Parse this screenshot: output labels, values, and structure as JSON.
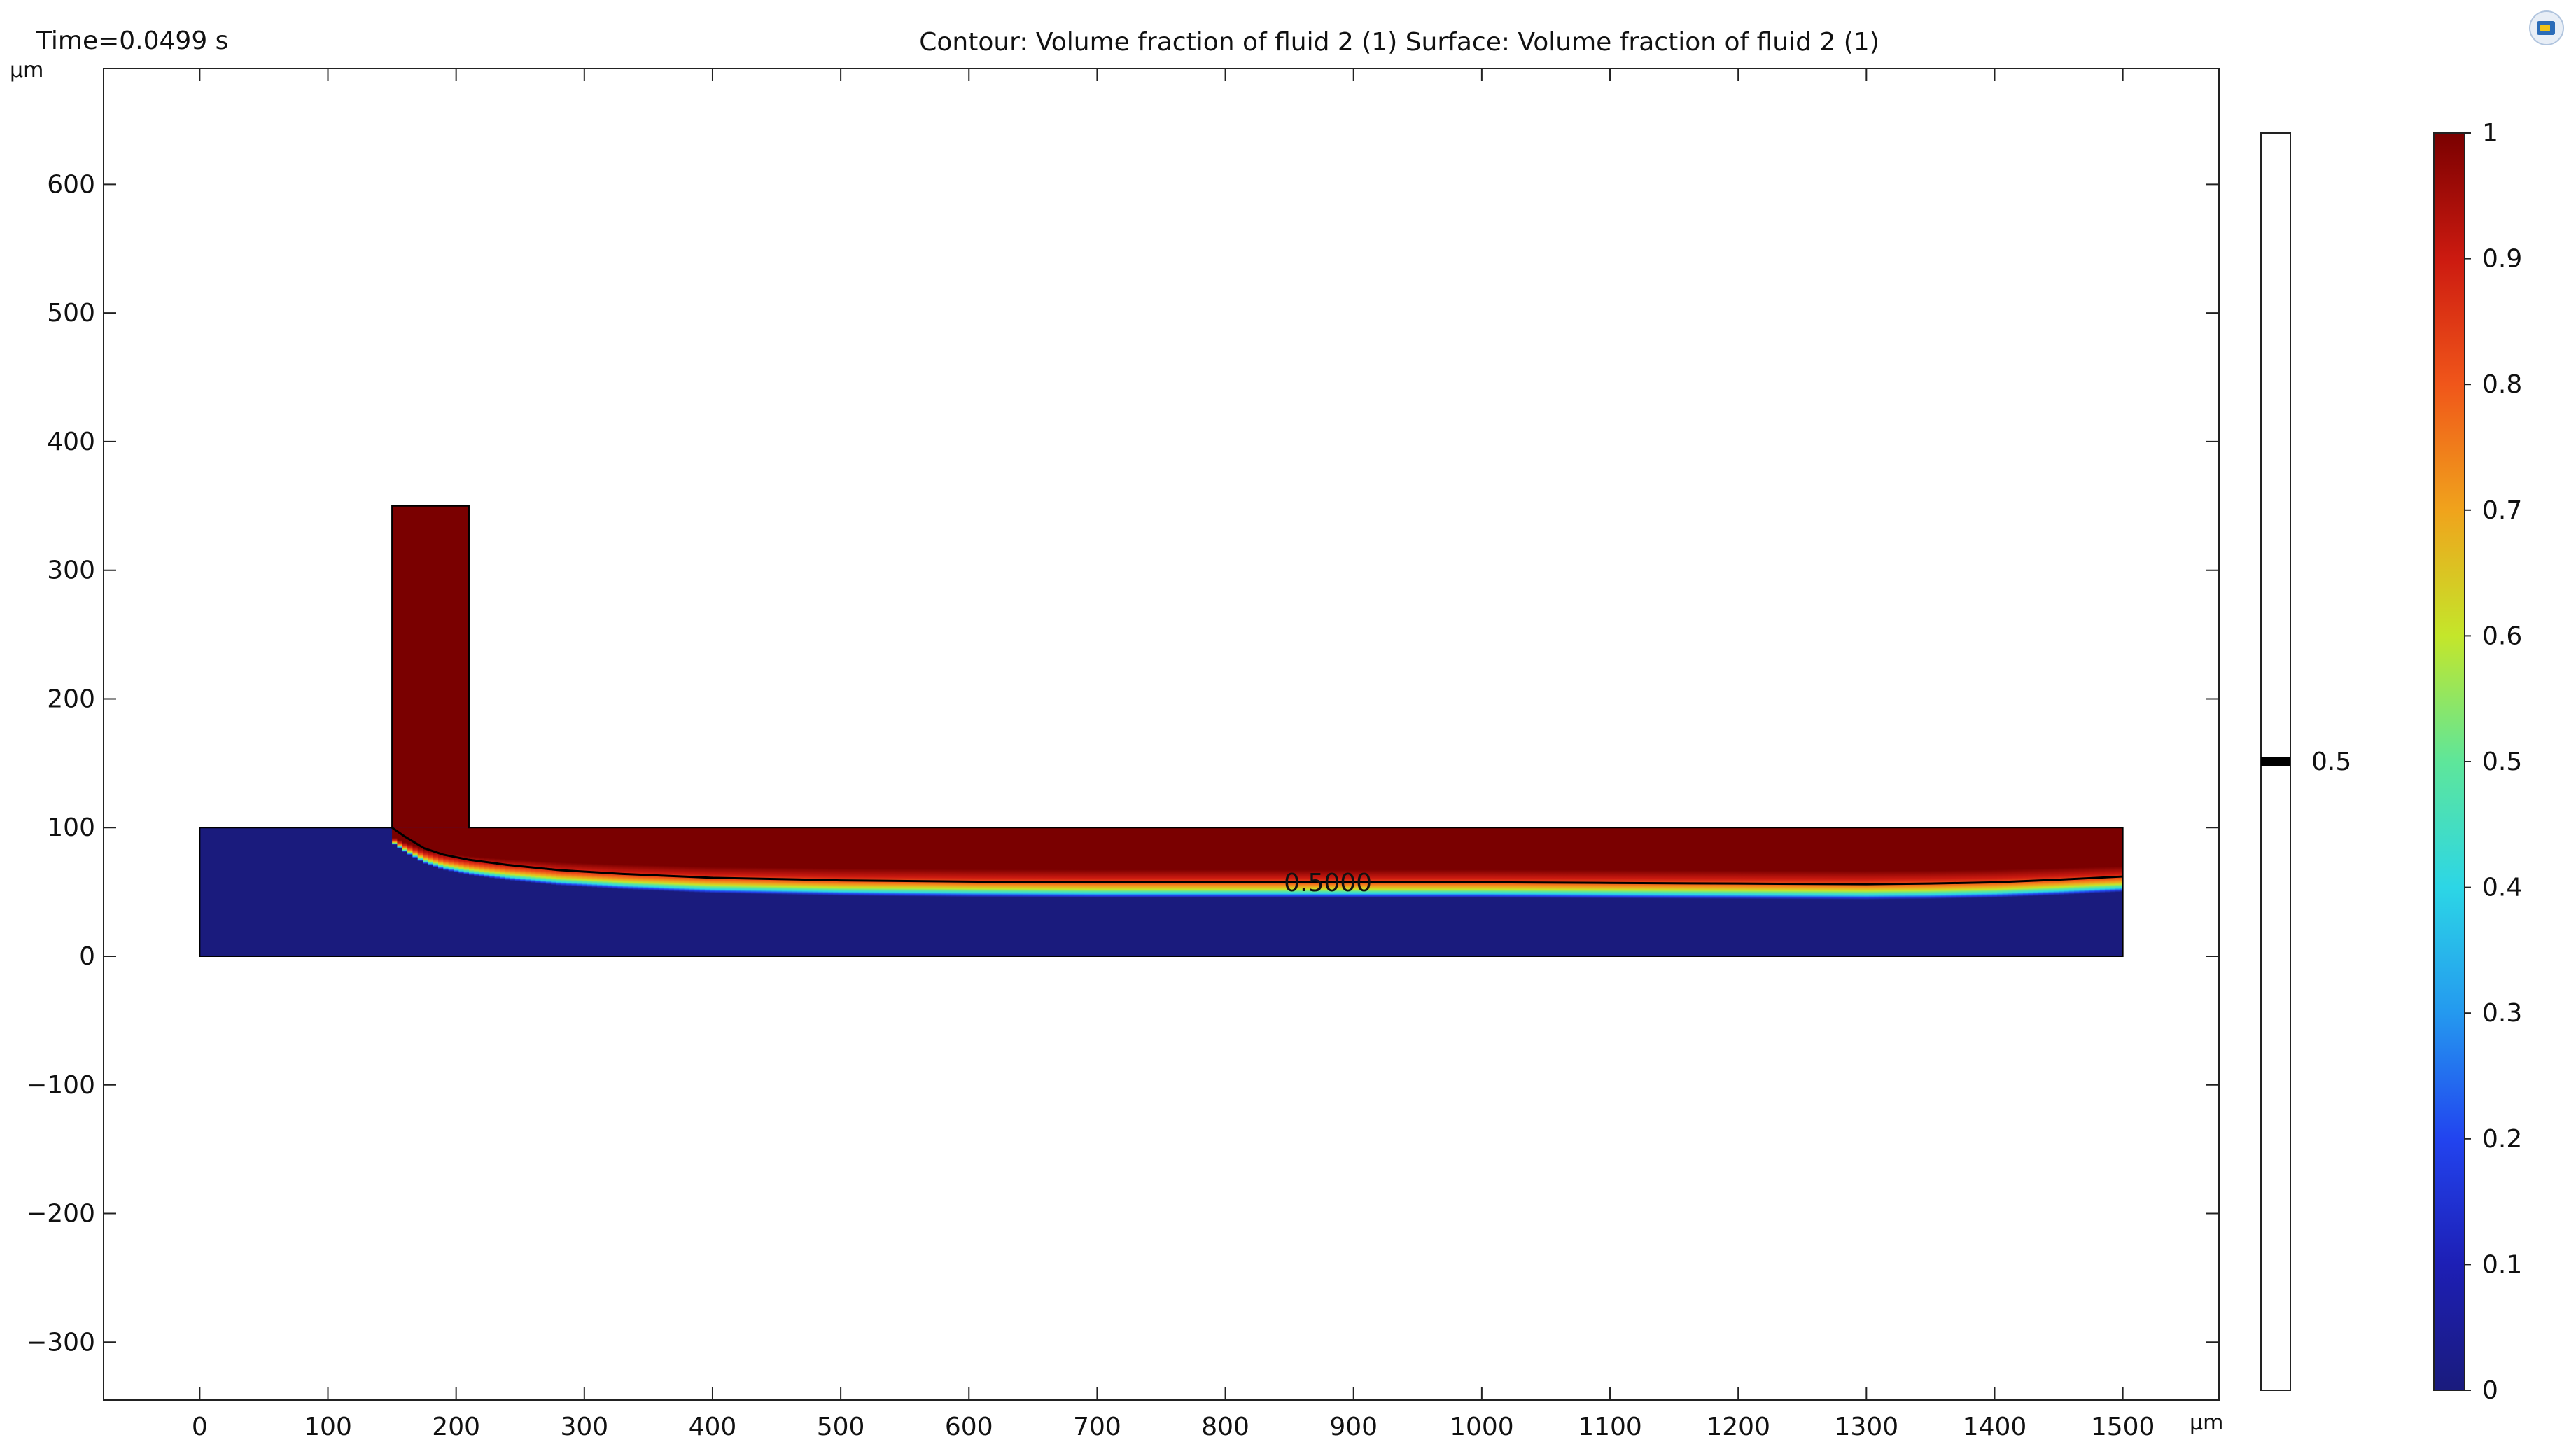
{
  "header": {
    "time_label": "Time=0.0499 s",
    "plot_title": "Contour: Volume fraction of fluid 2 (1)  Surface: Volume fraction of fluid 2 (1)",
    "corner_icon": "comsol-logo-icon"
  },
  "chart_data": {
    "type": "heatmap",
    "title": "Contour: Volume fraction of fluid 2 (1)  Surface: Volume fraction of fluid 2 (1)",
    "x_unit": "µm",
    "y_unit": "µm",
    "xlim": [
      -75,
      1575
    ],
    "ylim": [
      -345,
      690
    ],
    "x_ticks": [
      0,
      100,
      200,
      300,
      400,
      500,
      600,
      700,
      800,
      900,
      1000,
      1100,
      1200,
      1300,
      1400,
      1500
    ],
    "y_ticks": [
      -300,
      -200,
      -100,
      0,
      100,
      200,
      300,
      400,
      500,
      600
    ],
    "x_tick_labels": [
      "0",
      "100",
      "200",
      "300",
      "400",
      "500",
      "600",
      "700",
      "800",
      "900",
      "1000",
      "1100",
      "1200",
      "1300",
      "1400",
      "1500"
    ],
    "y_tick_labels": [
      "−300",
      "−200",
      "−100",
      "0",
      "100",
      "200",
      "300",
      "400",
      "500",
      "600"
    ],
    "domain": {
      "main_channel": {
        "x": [
          0,
          1500
        ],
        "y": [
          0,
          100
        ]
      },
      "inlet_channel": {
        "x": [
          150,
          210
        ],
        "y": [
          100,
          350
        ]
      }
    },
    "interface_contour": {
      "level_label": "0.5000",
      "level": 0.5,
      "points": [
        [
          150,
          100
        ],
        [
          160,
          93
        ],
        [
          175,
          84
        ],
        [
          190,
          79
        ],
        [
          210,
          75
        ],
        [
          240,
          71
        ],
        [
          280,
          67
        ],
        [
          330,
          64
        ],
        [
          400,
          61
        ],
        [
          500,
          59
        ],
        [
          600,
          58
        ],
        [
          700,
          57.5
        ],
        [
          800,
          57.5
        ],
        [
          900,
          57.5
        ],
        [
          1000,
          57.5
        ],
        [
          1100,
          57
        ],
        [
          1200,
          56.5
        ],
        [
          1300,
          56
        ],
        [
          1350,
          56.5
        ],
        [
          1400,
          57.5
        ],
        [
          1450,
          59.5
        ],
        [
          1500,
          62
        ]
      ],
      "label_position": [
        880,
        56
      ]
    },
    "surface_colorbar": {
      "min": 0,
      "max": 1,
      "ticks": [
        0,
        0.1,
        0.2,
        0.3,
        0.4,
        0.5,
        0.6,
        0.7,
        0.8,
        0.9,
        1
      ],
      "tick_labels": [
        "0",
        "0.1",
        "0.2",
        "0.3",
        "0.4",
        "0.5",
        "0.6",
        "0.7",
        "0.8",
        "0.9",
        "1"
      ],
      "colors": {
        "low": "#1a1b7d",
        "high": "#7a0000"
      }
    },
    "contour_legend": {
      "min": 0,
      "max": 1,
      "levels": [
        0.5
      ],
      "level_labels": [
        "0.5"
      ]
    }
  }
}
